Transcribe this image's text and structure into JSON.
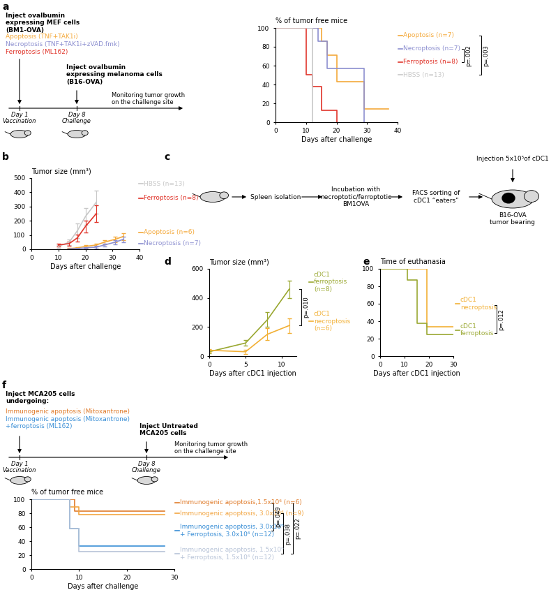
{
  "chart_data": [
    {
      "panel": "a",
      "type": "step",
      "ylabel": "% of tumor free mice",
      "xlabel": "Days after challenge",
      "xlim": [
        0,
        40
      ],
      "xticks": [
        0,
        10,
        20,
        30,
        40
      ],
      "ylim": [
        0,
        100
      ],
      "yticks": [
        0,
        20,
        40,
        60,
        80,
        100
      ],
      "annotations": [
        "p=.002",
        "p=.003"
      ],
      "series": [
        {
          "name": "Apoptosis (n=7)",
          "color": "#f4a93b",
          "x": [
            0,
            15,
            17,
            20,
            29,
            37
          ],
          "values": [
            100,
            86,
            71,
            43,
            14,
            14
          ]
        },
        {
          "name": "Necroptosis (n=7)",
          "color": "#8c8fd0",
          "x": [
            0,
            14,
            17,
            29
          ],
          "values": [
            100,
            86,
            57,
            0
          ]
        },
        {
          "name": "Ferroptosis (n=8)",
          "color": "#e0352b",
          "x": [
            0,
            10,
            12,
            15,
            20
          ],
          "values": [
            100,
            50,
            37.5,
            12.5,
            0
          ]
        },
        {
          "name": "HBSS (n=13)",
          "color": "#c8c8c8",
          "x": [
            0,
            12
          ],
          "values": [
            100,
            0
          ]
        }
      ]
    },
    {
      "panel": "b",
      "type": "line",
      "ylabel": "Tumor size (mm³)",
      "xlabel": "Days after challenge",
      "xlim": [
        0,
        40
      ],
      "xticks": [
        0,
        10,
        20,
        30,
        40
      ],
      "ylim": [
        0,
        500
      ],
      "yticks": [
        0,
        100,
        200,
        300,
        400,
        500
      ],
      "series": [
        {
          "name": "HBSS (n=13)",
          "color": "#c8c8c8",
          "x": [
            10,
            14,
            17,
            20,
            24
          ],
          "values": [
            20,
            50,
            130,
            230,
            330
          ],
          "errors": [
            10,
            20,
            50,
            60,
            80
          ]
        },
        {
          "name": "Ferroptosis (n=8)",
          "color": "#e0352b",
          "x": [
            10,
            14,
            17,
            20,
            24
          ],
          "values": [
            30,
            40,
            80,
            160,
            250
          ],
          "errors": [
            10,
            15,
            25,
            40,
            60
          ]
        },
        {
          "name": "Apoptosis (n=6)",
          "color": "#f4a93b",
          "x": [
            14,
            17,
            20,
            24,
            27,
            31,
            34
          ],
          "values": [
            5,
            10,
            20,
            30,
            50,
            70,
            90
          ],
          "errors": [
            3,
            5,
            8,
            10,
            15,
            20,
            25
          ]
        },
        {
          "name": "Necroptosis (n=7)",
          "color": "#8c8fd0",
          "x": [
            14,
            17,
            20,
            24,
            27,
            31,
            34
          ],
          "values": [
            3,
            5,
            10,
            15,
            30,
            50,
            70
          ],
          "errors": [
            2,
            3,
            5,
            8,
            10,
            15,
            20
          ]
        }
      ]
    },
    {
      "panel": "d",
      "type": "line",
      "ylabel": "Tumor size (mm³)",
      "xlabel": "Days after cDC1 injection",
      "xlim": [
        0,
        12
      ],
      "xticks": [
        0,
        5,
        10
      ],
      "ylim": [
        0,
        600
      ],
      "yticks": [
        0,
        200,
        400,
        600
      ],
      "annotations": [
        "p=.010"
      ],
      "series": [
        {
          "name": "cDC1\nferroptosis\n(n=8)",
          "color": "#9aa832",
          "x": [
            0,
            5,
            8,
            11
          ],
          "values": [
            30,
            90,
            250,
            460
          ],
          "errors": [
            10,
            20,
            50,
            60
          ]
        },
        {
          "name": "cDC1\nnecroptosis\n(n=6)",
          "color": "#f2b035",
          "x": [
            0,
            5,
            8,
            11
          ],
          "values": [
            40,
            30,
            150,
            210
          ],
          "errors": [
            10,
            15,
            40,
            50
          ]
        }
      ]
    },
    {
      "panel": "e",
      "type": "step",
      "ylabel": "Time of euthanasia",
      "xlabel": "Days after cDC1 injection",
      "xlim": [
        0,
        30
      ],
      "xticks": [
        0,
        10,
        20,
        30
      ],
      "ylim": [
        0,
        100
      ],
      "yticks": [
        0,
        20,
        40,
        60,
        80,
        100
      ],
      "annotations": [
        "p=.012"
      ],
      "series": [
        {
          "name": "cDC1\nnecroptosis",
          "color": "#f2b035",
          "x": [
            0,
            19,
            30
          ],
          "values": [
            100,
            33.3,
            33.3
          ]
        },
        {
          "name": "cDC1\nferroptosis",
          "color": "#9aa832",
          "x": [
            0,
            11,
            15,
            19,
            30
          ],
          "values": [
            100,
            87.5,
            37.5,
            25,
            25
          ]
        }
      ]
    },
    {
      "panel": "f",
      "type": "step",
      "ylabel": "% of tumor free mice",
      "xlabel": "Days after challenge",
      "xlim": [
        0,
        30
      ],
      "xticks": [
        0,
        10,
        20,
        30
      ],
      "ylim": [
        0,
        100
      ],
      "yticks": [
        0,
        20,
        40,
        60,
        80,
        100
      ],
      "annotations": [
        "p=.049",
        "p=.038",
        "p=.022"
      ],
      "series": [
        {
          "name": "Immunogenic apoptosis,1.5x10⁶ (n=6)",
          "color": "#e07b2a",
          "x": [
            0,
            9,
            28
          ],
          "values": [
            100,
            83.3,
            83.3
          ]
        },
        {
          "name": "Immunogenic apoptosis, 3.0x10⁶ (n=9)",
          "color": "#f2a541",
          "x": [
            0,
            8,
            10,
            28
          ],
          "values": [
            100,
            88.9,
            77.8,
            77.8
          ]
        },
        {
          "name": "Immunogenic apoptosis, 3.0x10⁶\n+ Ferroptosis, 3.0x10⁶ (n=12)",
          "color": "#3a8fd6",
          "x": [
            0,
            8,
            10,
            28
          ],
          "values": [
            100,
            58.3,
            33.3,
            33.3
          ]
        },
        {
          "name": "Immunogenic apoptosis, 1.5x10⁶\n+ Ferroptosis, 1.5x10⁶ (n=12)",
          "color": "#b8c4d8",
          "x": [
            0,
            8,
            10,
            28
          ],
          "values": [
            100,
            58.3,
            25,
            25
          ]
        }
      ]
    }
  ],
  "schematics": [
    {
      "panel": "a",
      "inject": "Inject ovalbumin\nexpressing MEF cells\n(BM1-OVA)",
      "treatments": [
        {
          "text": "Apoptosis (TNF+TAK1i)",
          "color": "#f4a93b"
        },
        {
          "text": "Necroptosis (TNF+TAK1i+zVAD.fmk)",
          "color": "#8c8fd0"
        },
        {
          "text": "Ferroptosis (ML162)",
          "color": "#e0352b"
        }
      ],
      "challenge": "Inject ovalbumin\nexpressing melanoma cells\n(B16-OVA)",
      "day1": "Day 1",
      "vaccination": "Vaccination",
      "day8": "Day 8",
      "challenge_label": "Challenge",
      "monitoring": "Monitoring tumor growth\non the challenge site"
    },
    {
      "panel": "f",
      "inject": "Inject MCA205 cells\nundergoing:",
      "treatments": [
        {
          "text": "Immunogenic apoptosis (Mitoxantrone)",
          "color": "#e07b2a"
        },
        {
          "text": "Immunogenic apoptosis (Mitoxantrone)\n+ferroptosis (ML162)",
          "color": "#3a8fd6"
        }
      ],
      "challenge": "Inject Untreated\nMCA205 cells",
      "day1": "Day 1",
      "vaccination": "Vaccination",
      "day8": "Day 8",
      "challenge_label": "Challenge",
      "monitoring": "Monitoring tumor growth\non the challenge site"
    }
  ],
  "workflow": {
    "panel": "c",
    "steps": [
      "Spleen isolation",
      "Incubation with\nnecroptotic/ferroptotic\nBM1OVA",
      "FACS sorting of\ncDC1 “eaters”"
    ],
    "injection": "Injection 5x10⁵of cDC1",
    "recipient": "B16-OVA\ntumor bearing"
  }
}
